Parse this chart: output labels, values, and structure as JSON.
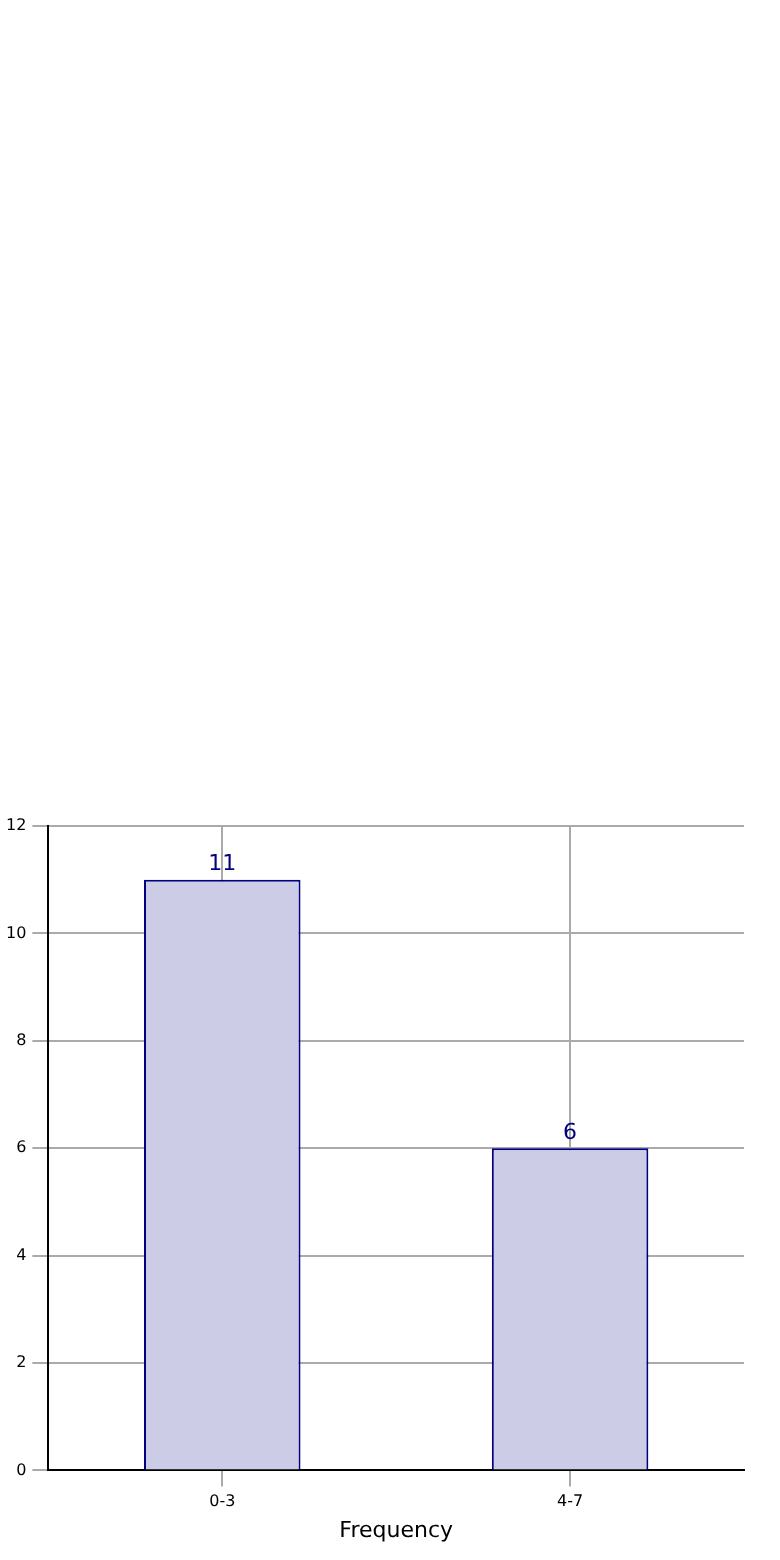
{
  "chart_data": {
    "type": "bar",
    "xlabel": "Frequency",
    "categories": [
      "0-3",
      "4-7"
    ],
    "values": [
      11,
      6
    ],
    "color": "#cccce6",
    "ylim": [
      0,
      12
    ],
    "yticks": [
      0,
      2,
      4,
      6,
      8,
      10,
      12
    ],
    "grid": true,
    "legend": false,
    "data_labels": true
  }
}
